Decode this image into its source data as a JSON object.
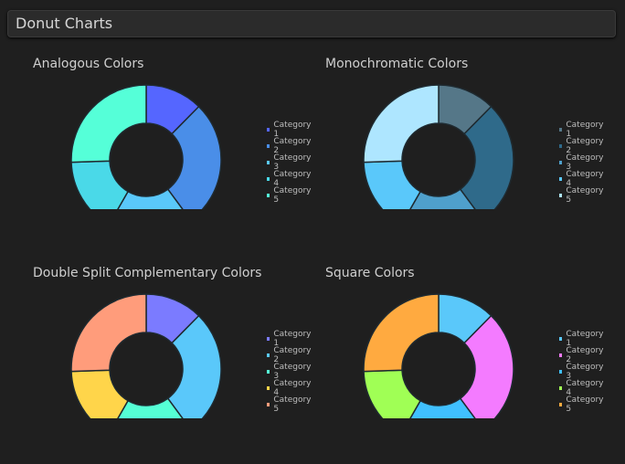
{
  "header": {
    "title": "Donut Charts"
  },
  "chart_data": [
    {
      "type": "donut",
      "title": "Analogous Colors",
      "categories": [
        "Category 1",
        "Category 2",
        "Category 3",
        "Category 4",
        "Category 5"
      ],
      "values": [
        12.4,
        27.5,
        18.4,
        16.2,
        25.5
      ],
      "colors": [
        "#5566ff",
        "#4a8ee8",
        "#5ac8fa",
        "#4ad9e8",
        "#55ffd8"
      ]
    },
    {
      "type": "donut",
      "title": "Monochromatic Colors",
      "categories": [
        "Category 1",
        "Category 2",
        "Category 3",
        "Category 4",
        "Category 5"
      ],
      "values": [
        12.4,
        27.5,
        18.4,
        16.2,
        25.5
      ],
      "colors": [
        "#557788",
        "#2f6a8a",
        "#4fa0cc",
        "#5ac8fa",
        "#aee6ff"
      ]
    },
    {
      "type": "donut",
      "title": "Double Split Complementary Colors",
      "categories": [
        "Category 1",
        "Category 2",
        "Category 3",
        "Category 4",
        "Category 5"
      ],
      "values": [
        12.4,
        27.5,
        18.4,
        16.2,
        25.5
      ],
      "colors": [
        "#7b7bff",
        "#5ac8fa",
        "#55ffd5",
        "#ffd54a",
        "#ff9c7b"
      ]
    },
    {
      "type": "donut",
      "title": "Square Colors",
      "categories": [
        "Category 1",
        "Category 2",
        "Category 3",
        "Category 4",
        "Category 5"
      ],
      "values": [
        12.4,
        27.5,
        18.4,
        16.2,
        25.5
      ],
      "colors": [
        "#5ac8fa",
        "#f47bff",
        "#40c0ff",
        "#a0ff55",
        "#ffaa40"
      ]
    }
  ]
}
